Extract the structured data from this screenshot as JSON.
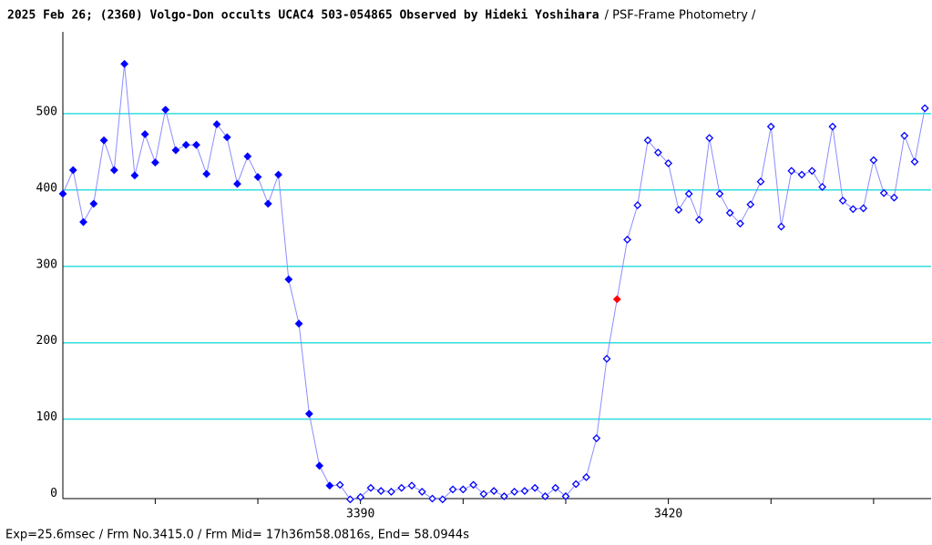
{
  "chart_data": {
    "type": "line",
    "title": "2025 Feb 26; (2360) Volgo-Don occults UCAC4 503-054865 Observed by Hideki Yoshihara",
    "subtitle": "/ PSF-Frame Photometry /",
    "footer": "Exp=25.6msec / Frm No.3415.0 / Frm Mid= 17h36m58.0816s,  End= 58.0944s",
    "x": [
      3361,
      3362,
      3363,
      3364,
      3365,
      3366,
      3367,
      3368,
      3369,
      3370,
      3371,
      3372,
      3373,
      3374,
      3375,
      3376,
      3377,
      3378,
      3379,
      3380,
      3381,
      3382,
      3383,
      3384,
      3385,
      3386,
      3387,
      3388,
      3389,
      3390,
      3391,
      3392,
      3393,
      3394,
      3395,
      3396,
      3397,
      3398,
      3399,
      3400,
      3401,
      3402,
      3403,
      3404,
      3405,
      3406,
      3407,
      3408,
      3409,
      3410,
      3411,
      3412,
      3413,
      3414,
      3415,
      3416,
      3417,
      3418,
      3419,
      3420,
      3421,
      3422,
      3423,
      3424,
      3425,
      3426,
      3427,
      3428,
      3429,
      3430,
      3431,
      3432,
      3433,
      3434,
      3435,
      3436,
      3437,
      3438,
      3439,
      3440,
      3441,
      3442,
      3443,
      3444,
      3445
    ],
    "series": [
      {
        "color": "#0000ff",
        "line_color": "#8c8cff",
        "values": [
          395,
          426,
          358,
          382,
          465,
          426,
          565,
          419,
          473,
          436,
          505,
          452,
          459,
          459,
          421,
          486,
          469,
          408,
          444,
          417,
          382,
          420,
          283,
          225,
          107,
          39,
          13,
          14,
          -5,
          -2,
          10,
          6,
          5,
          10,
          13,
          5,
          -4,
          -5,
          8,
          8,
          14,
          2,
          6,
          -1,
          5,
          6,
          10,
          -1,
          10,
          -1,
          15,
          24,
          75,
          179,
          257,
          335,
          380,
          465,
          449,
          435,
          374,
          395,
          361,
          468,
          395,
          370,
          356,
          381,
          411,
          483,
          352,
          425,
          420,
          425,
          404,
          483,
          386,
          375,
          376,
          439,
          396,
          390,
          471,
          437,
          507
        ]
      }
    ],
    "filled_through": 3387,
    "highlight_x": 3415,
    "highlight_color": "#ff0000",
    "xlim": [
      3361,
      3445.6
    ],
    "xticks": [
      3390,
      3420
    ],
    "minor_xticks": [
      3370,
      3380,
      3400,
      3410,
      3430,
      3440
    ],
    "ylim": [
      -4,
      607
    ],
    "yticks": [
      0,
      100,
      200,
      300,
      400,
      500
    ],
    "grid": true,
    "grid_color": "#33dddd"
  }
}
